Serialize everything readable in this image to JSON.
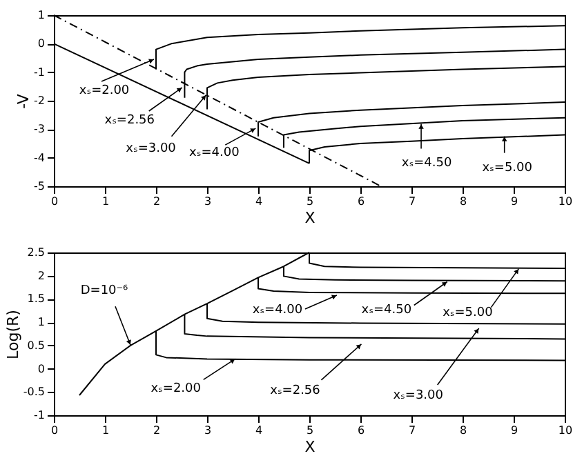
{
  "chart_data": [
    {
      "type": "line",
      "xlabel": "X",
      "ylabel": "-V",
      "xlim": [
        0,
        10
      ],
      "ylim": [
        -5,
        1
      ],
      "xticks": [
        0,
        1,
        2,
        3,
        4,
        5,
        6,
        7,
        8,
        9,
        10
      ],
      "yticks": [
        -5,
        -4,
        -3,
        -2,
        -1,
        0,
        1
      ],
      "series": [
        {
          "color": "#000000",
          "x": [
            0,
            5
          ],
          "values": [
            0,
            -4.2
          ]
        },
        {
          "color": "#000000",
          "line_style": "dashed",
          "x": [
            0,
            6.4
          ],
          "values": [
            1,
            -5
          ]
        },
        {
          "color": "#000000",
          "x": [
            2,
            2,
            2.3,
            3,
            4,
            5,
            6,
            8,
            10
          ],
          "values": [
            -0.9,
            -0.2,
            0.0,
            0.22,
            0.32,
            0.38,
            0.45,
            0.56,
            0.63
          ]
        },
        {
          "color": "#000000",
          "x": [
            2.56,
            2.56,
            2.6,
            2.8,
            3,
            4,
            5,
            6,
            8,
            10
          ],
          "values": [
            -1.9,
            -1.0,
            -0.9,
            -0.78,
            -0.72,
            -0.55,
            -0.47,
            -0.4,
            -0.3,
            -0.2
          ]
        },
        {
          "color": "#000000",
          "x": [
            3,
            3,
            3.2,
            3.5,
            4,
            5,
            6,
            8,
            10
          ],
          "values": [
            -2.3,
            -1.55,
            -1.38,
            -1.28,
            -1.18,
            -1.08,
            -1.02,
            -0.9,
            -0.8
          ]
        },
        {
          "color": "#000000",
          "x": [
            4,
            4,
            4.3,
            5,
            6,
            8,
            10
          ],
          "values": [
            -3.25,
            -2.75,
            -2.6,
            -2.45,
            -2.33,
            -2.17,
            -2.05
          ]
        },
        {
          "color": "#000000",
          "x": [
            4.5,
            4.5,
            4.8,
            5.5,
            6,
            8,
            10
          ],
          "values": [
            -3.65,
            -3.2,
            -3.1,
            -2.98,
            -2.9,
            -2.7,
            -2.6
          ]
        },
        {
          "color": "#000000",
          "x": [
            5,
            5,
            5.3,
            6,
            7,
            8,
            10
          ],
          "values": [
            -4.2,
            -3.75,
            -3.62,
            -3.5,
            -3.42,
            -3.33,
            -3.2
          ]
        }
      ],
      "annotations": [
        {
          "text": "xₛ=2.00",
          "x": 1.96,
          "y": -0.55
        },
        {
          "text": "xₛ=2.56",
          "x": 2.51,
          "y": -1.54
        },
        {
          "text": "xₛ=3.00",
          "x": 2.98,
          "y": -1.8
        },
        {
          "text": "xₛ=4.00",
          "x": 3.95,
          "y": -2.97
        },
        {
          "text": "xₛ=4.50",
          "x": 7.19,
          "y": -2.81
        },
        {
          "text": "xₛ=5.00",
          "x": 8.82,
          "y": -3.25
        }
      ]
    },
    {
      "type": "line",
      "xlabel": "X",
      "ylabel": "Log(R)",
      "xlim": [
        0,
        10
      ],
      "ylim": [
        -1,
        2.5
      ],
      "xticks": [
        0,
        1,
        2,
        3,
        4,
        5,
        6,
        7,
        8,
        9,
        10
      ],
      "yticks": [
        -1,
        -0.5,
        0,
        0.5,
        1,
        1.5,
        2,
        2.5
      ],
      "series": [
        {
          "color": "#000000",
          "x": [
            0.5,
            1,
            1.5,
            2,
            2.56,
            3,
            3.5,
            4,
            4.5,
            5
          ],
          "values": [
            -0.57,
            0.1,
            0.5,
            0.81,
            1.17,
            1.4,
            1.68,
            1.96,
            2.2,
            2.5
          ]
        },
        {
          "color": "#000000",
          "x": [
            2,
            2,
            2.2,
            3,
            5,
            10
          ],
          "values": [
            0.81,
            0.3,
            0.24,
            0.21,
            0.19,
            0.18
          ]
        },
        {
          "color": "#000000",
          "x": [
            2.56,
            2.56,
            2.8,
            3,
            5,
            10
          ],
          "values": [
            1.17,
            0.75,
            0.72,
            0.7,
            0.67,
            0.64
          ]
        },
        {
          "color": "#000000",
          "x": [
            3,
            3,
            3.3,
            4,
            6,
            10
          ],
          "values": [
            1.4,
            1.08,
            1.02,
            1.0,
            0.98,
            0.96
          ]
        },
        {
          "color": "#000000",
          "x": [
            4,
            4,
            4.3,
            5,
            7,
            10
          ],
          "values": [
            1.96,
            1.72,
            1.67,
            1.64,
            1.63,
            1.62
          ]
        },
        {
          "color": "#000000",
          "x": [
            4.5,
            4.5,
            4.8,
            5.5,
            7,
            10
          ],
          "values": [
            2.2,
            1.99,
            1.93,
            1.91,
            1.9,
            1.89
          ]
        },
        {
          "color": "#000000",
          "x": [
            5,
            5,
            5.3,
            6,
            8,
            10
          ],
          "values": [
            2.5,
            2.27,
            2.2,
            2.18,
            2.17,
            2.16
          ]
        }
      ],
      "annotations": [
        {
          "text": "D=10⁻⁶",
          "x": 1.5,
          "y": 0.51
        },
        {
          "text": "xₛ=2.00",
          "x": 3.55,
          "y": 0.21
        },
        {
          "text": "xₛ=2.56",
          "x": 6.02,
          "y": 0.53
        },
        {
          "text": "xₛ=3.00",
          "x": 8.32,
          "y": 0.87
        },
        {
          "text": "xₛ=4.00",
          "x": 5.54,
          "y": 1.58
        },
        {
          "text": "xₛ=4.50",
          "x": 7.7,
          "y": 1.87
        },
        {
          "text": "xₛ=5.00",
          "x": 9.1,
          "y": 2.15
        }
      ]
    }
  ]
}
